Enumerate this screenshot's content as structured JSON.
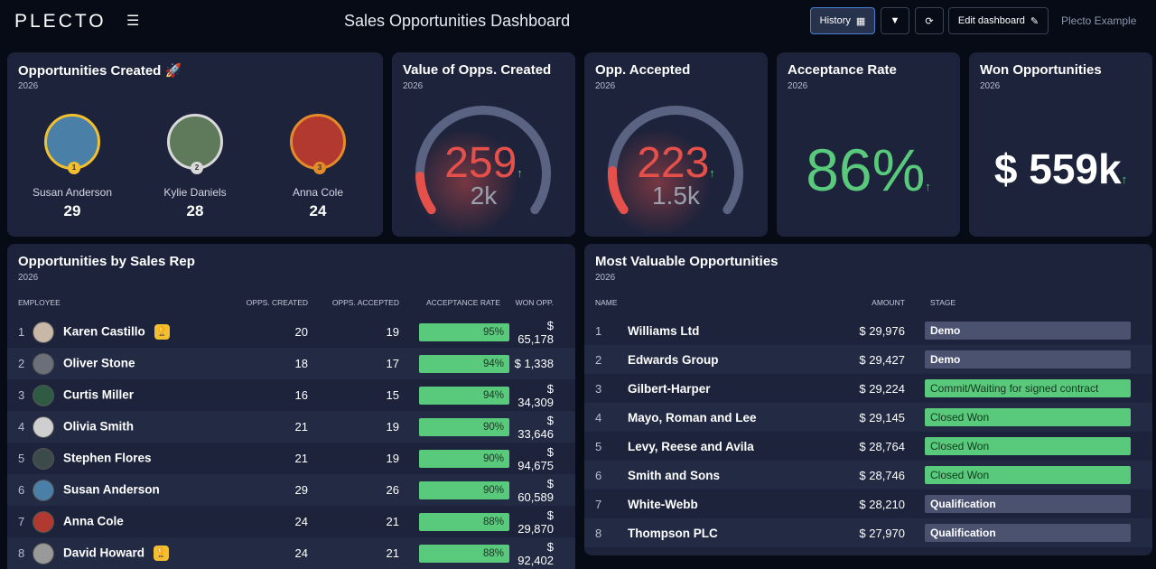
{
  "header": {
    "logo": "PLECTO",
    "title": "Sales Opportunities Dashboard",
    "history": "History",
    "edit": "Edit dashboard",
    "account": "Plecto Example"
  },
  "colors": {
    "bg": "#060b16",
    "card": "#1c233b",
    "green": "#59c97b",
    "red": "#e5504b",
    "gauge_track": "#5a6482"
  },
  "podium": {
    "title": "Opportunities Created 🚀",
    "sub": "2026",
    "items": [
      {
        "name": "Susan Anderson",
        "value": "29",
        "rank": "1",
        "ring": "#f2c02f",
        "bg": "#4a7fa8"
      },
      {
        "name": "Kylie Daniels",
        "value": "28",
        "rank": "2",
        "ring": "#d9d9d9",
        "bg": "#5e7a5a"
      },
      {
        "name": "Anna Cole",
        "value": "24",
        "rank": "3",
        "ring": "#e38a2a",
        "bg": "#b2392f"
      }
    ]
  },
  "value_created": {
    "title": "Value of Opps. Created",
    "sub": "2026",
    "value": "259",
    "target": "2k",
    "fraction": 0.13
  },
  "accepted": {
    "title": "Opp. Accepted",
    "sub": "2026",
    "value": "223",
    "target": "1.5k",
    "fraction": 0.15
  },
  "rate": {
    "title": "Acceptance Rate",
    "sub": "2026",
    "value": "86%"
  },
  "won": {
    "title": "Won Opportunities",
    "sub": "2026",
    "value": "$ 559k"
  },
  "reps": {
    "title": "Opportunities by Sales Rep",
    "sub": "2026",
    "columns": [
      "EMPLOYEE",
      "OPPS. CREATED",
      "OPPS. ACCEPTED",
      "ACCEPTANCE RATE",
      "WON OPP."
    ],
    "rows": [
      {
        "rank": "1",
        "name": "Karen Castillo",
        "created": "20",
        "accepted": "19",
        "rate": "95%",
        "won": "$ 65,178",
        "trophy": true
      },
      {
        "rank": "2",
        "name": "Oliver Stone",
        "created": "18",
        "accepted": "17",
        "rate": "94%",
        "won": "$ 1,338"
      },
      {
        "rank": "3",
        "name": "Curtis Miller",
        "created": "16",
        "accepted": "15",
        "rate": "94%",
        "won": "$ 34,309"
      },
      {
        "rank": "4",
        "name": "Olivia Smith",
        "created": "21",
        "accepted": "19",
        "rate": "90%",
        "won": "$ 33,646"
      },
      {
        "rank": "5",
        "name": "Stephen Flores",
        "created": "21",
        "accepted": "19",
        "rate": "90%",
        "won": "$ 94,675"
      },
      {
        "rank": "6",
        "name": "Susan Anderson",
        "created": "29",
        "accepted": "26",
        "rate": "90%",
        "won": "$ 60,589"
      },
      {
        "rank": "7",
        "name": "Anna Cole",
        "created": "24",
        "accepted": "21",
        "rate": "88%",
        "won": "$ 29,870"
      },
      {
        "rank": "8",
        "name": "David Howard",
        "created": "24",
        "accepted": "21",
        "rate": "88%",
        "won": "$ 92,402",
        "trophy": true
      }
    ]
  },
  "valuable": {
    "title": "Most Valuable Opportunities",
    "sub": "2026",
    "columns": [
      "NAME",
      "AMOUNT",
      "STAGE"
    ],
    "rows": [
      {
        "rank": "1",
        "name": "Williams Ltd",
        "amount": "$ 29,976",
        "stage": "Demo",
        "green": false
      },
      {
        "rank": "2",
        "name": "Edwards Group",
        "amount": "$ 29,427",
        "stage": "Demo",
        "green": false
      },
      {
        "rank": "3",
        "name": "Gilbert-Harper",
        "amount": "$ 29,224",
        "stage": "Commit/Waiting for signed contract",
        "green": true
      },
      {
        "rank": "4",
        "name": "Mayo, Roman and Lee",
        "amount": "$ 29,145",
        "stage": "Closed Won",
        "green": true
      },
      {
        "rank": "5",
        "name": "Levy, Reese and Avila",
        "amount": "$ 28,764",
        "stage": "Closed Won",
        "green": true
      },
      {
        "rank": "6",
        "name": "Smith and Sons",
        "amount": "$ 28,746",
        "stage": "Closed Won",
        "green": true
      },
      {
        "rank": "7",
        "name": "White-Webb",
        "amount": "$ 28,210",
        "stage": "Qualification",
        "green": false
      },
      {
        "rank": "8",
        "name": "Thompson PLC",
        "amount": "$ 27,970",
        "stage": "Qualification",
        "green": false
      }
    ]
  }
}
